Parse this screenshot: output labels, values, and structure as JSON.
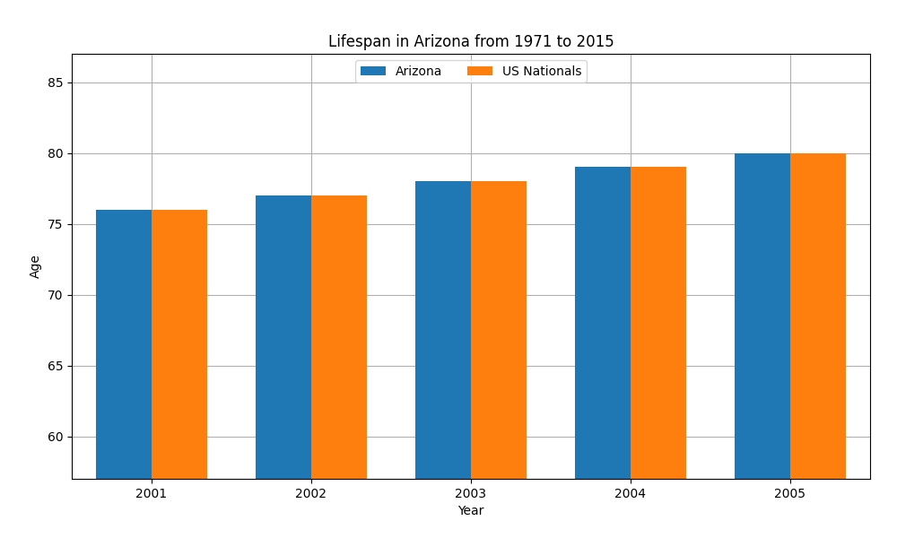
{
  "chart_data": {
    "type": "bar",
    "title": "Lifespan in Arizona from 1971 to 2015",
    "xlabel": "Year",
    "ylabel": "Age",
    "categories": [
      "2001",
      "2002",
      "2003",
      "2004",
      "2005"
    ],
    "series": [
      {
        "name": "Arizona",
        "values": [
          76,
          77,
          78,
          79,
          80
        ]
      },
      {
        "name": "US Nationals",
        "values": [
          76,
          77,
          78,
          79,
          80
        ]
      }
    ],
    "ylim": [
      57,
      87
    ],
    "yticks": [
      60,
      65,
      70,
      75,
      80,
      85
    ],
    "grid": true,
    "legend": "upper center"
  }
}
